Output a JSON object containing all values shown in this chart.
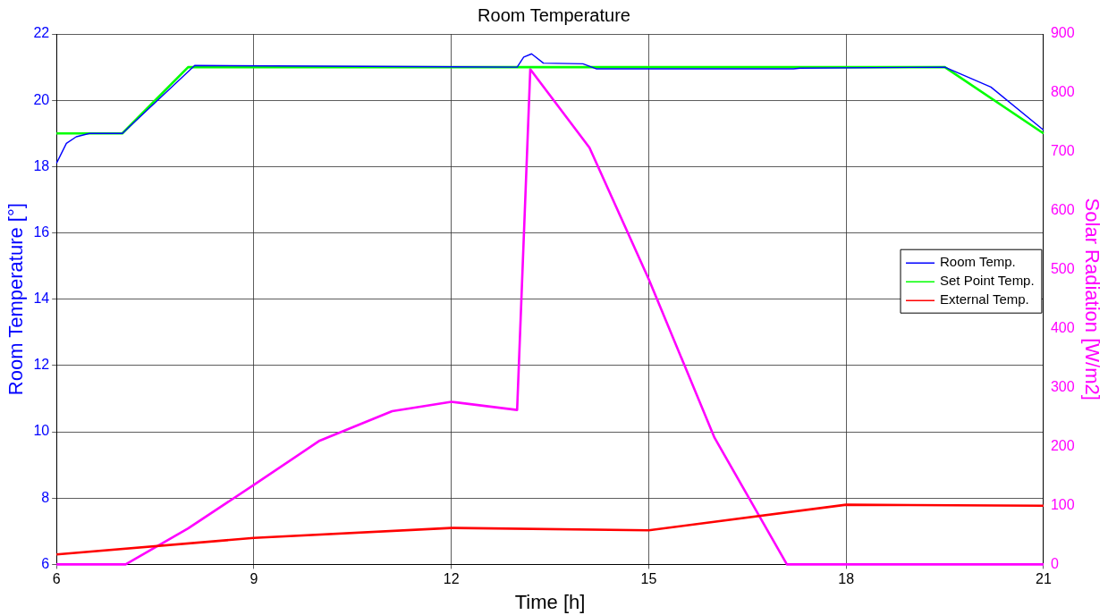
{
  "chart_data": {
    "type": "line",
    "title": "Room Temperature",
    "xlabel": "Time [h]",
    "ylabel": "Room Temperature [°]",
    "y2label": "Solar Radiation [W/m2]",
    "xlim": [
      6,
      21
    ],
    "xticks": [
      6,
      9,
      12,
      15,
      18,
      21
    ],
    "ylim": [
      6,
      22
    ],
    "yticks": [
      6,
      8,
      10,
      12,
      14,
      16,
      18,
      20,
      22
    ],
    "y2lim": [
      0,
      900
    ],
    "y2ticks": [
      0,
      100,
      200,
      300,
      400,
      500,
      600,
      700,
      800,
      900
    ],
    "grid": true,
    "legend": "right",
    "line_style": "solid",
    "marker": "none",
    "series": [
      {
        "name": "Room Temp.",
        "color": "#0000ff",
        "x": [
          6,
          6.15,
          6.3,
          6.5,
          7,
          8.1,
          10,
          13,
          13.1,
          13.22,
          13.4,
          14,
          14.2,
          17.2,
          17.3,
          19.5,
          20.2,
          21
        ],
        "values": [
          18.1,
          18.7,
          18.9,
          19,
          19,
          21.05,
          21.03,
          21,
          21.3,
          21.4,
          21.12,
          21.1,
          20.95,
          20.95,
          20.97,
          21,
          20.4,
          19.1
        ]
      },
      {
        "name": "Set Point Temp.",
        "color": "#00ff00",
        "x": [
          6,
          7,
          8,
          19.5,
          21
        ],
        "values": [
          19,
          19,
          21,
          21,
          19
        ]
      },
      {
        "name": "External Temp.",
        "color": "#ff0000",
        "x": [
          6,
          9,
          12,
          15,
          18,
          21
        ],
        "values": [
          6.3,
          6.8,
          7.1,
          7.03,
          7.8,
          7.77
        ]
      },
      {
        "color": "#ff00ff",
        "axis": "y2",
        "x": [
          6,
          7.05,
          8,
          9,
          10,
          11.1,
          12,
          13,
          13.2,
          14.1,
          15,
          16,
          17.1,
          21
        ],
        "values": [
          0,
          0,
          61,
          135,
          210,
          260,
          276,
          262,
          840,
          707,
          484,
          215,
          0,
          0
        ]
      }
    ]
  }
}
